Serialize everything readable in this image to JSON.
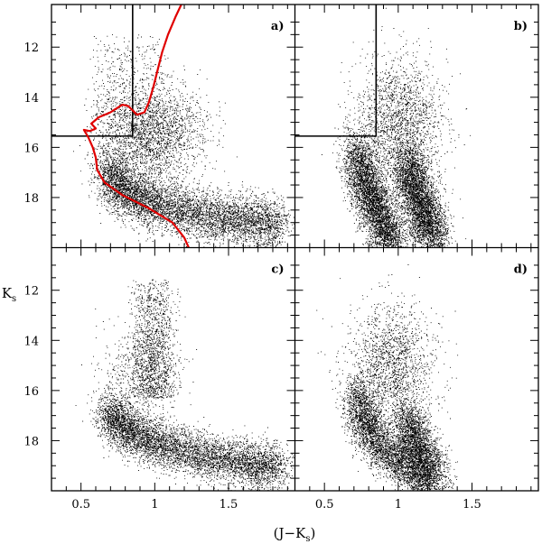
{
  "chart_data": {
    "type": "scatter",
    "layout": "2x2 panels sharing axes",
    "xlabel": "(J−K",
    "xlabel_sub": "s",
    "xlabel_close": ")",
    "ylabel": "K",
    "ylabel_sub": "s",
    "xlim": [
      0.3,
      1.95
    ],
    "ylim": [
      20.0,
      10.3
    ],
    "x_ticks": [
      {
        "value": 0.5,
        "label": "0.5"
      },
      {
        "value": 1.0,
        "label": "1"
      },
      {
        "value": 1.5,
        "label": "1.5"
      }
    ],
    "y_ticks": [
      {
        "value": 12,
        "label": "12"
      },
      {
        "value": 14,
        "label": "14"
      },
      {
        "value": 16,
        "label": "16"
      },
      {
        "value": 18,
        "label": "18"
      }
    ],
    "grid": false,
    "panels": [
      {
        "label": "a)",
        "points_drawn": 9000,
        "populations": [
          {
            "kind": "band",
            "weight": 0.68,
            "ridge": [
              [
                0.68,
                17.0
              ],
              [
                0.8,
                17.8
              ],
              [
                1.0,
                18.3
              ],
              [
                1.3,
                18.7
              ],
              [
                1.6,
                18.9
              ],
              [
                1.85,
                19.1
              ]
            ],
            "spread_x": 0.06,
            "spread_y": 0.5
          },
          {
            "kind": "cloud",
            "weight": 0.22,
            "center": [
              1.0,
              15.5
            ],
            "spread": [
              0.35,
              2.0
            ]
          },
          {
            "kind": "column",
            "weight": 0.1,
            "x_range": [
              0.6,
              1.05
            ],
            "y_range": [
              11.5,
              16.5
            ]
          }
        ],
        "selection_box": {
          "x_max": 0.85,
          "y_min": 15.55,
          "color": "#000000"
        },
        "isochrone": {
          "color": "#e00000",
          "points": [
            [
              1.23,
              20.0
            ],
            [
              1.2,
              19.6
            ],
            [
              1.12,
              19.0
            ],
            [
              0.95,
              18.4
            ],
            [
              0.78,
              17.9
            ],
            [
              0.66,
              17.4
            ],
            [
              0.61,
              16.9
            ],
            [
              0.6,
              16.4
            ],
            [
              0.58,
              16.0
            ],
            [
              0.55,
              15.6
            ],
            [
              0.52,
              15.3
            ],
            [
              0.56,
              15.35
            ],
            [
              0.6,
              15.25
            ],
            [
              0.57,
              15.05
            ],
            [
              0.62,
              14.8
            ],
            [
              0.7,
              14.6
            ],
            [
              0.78,
              14.3
            ],
            [
              0.82,
              14.35
            ],
            [
              0.88,
              14.7
            ],
            [
              0.93,
              14.6
            ],
            [
              0.96,
              14.2
            ],
            [
              0.99,
              13.6
            ],
            [
              1.02,
              12.9
            ],
            [
              1.05,
              12.2
            ],
            [
              1.09,
              11.5
            ],
            [
              1.14,
              10.8
            ],
            [
              1.18,
              10.3
            ]
          ]
        }
      },
      {
        "label": "b)",
        "points_drawn": 11000,
        "populations": [
          {
            "kind": "band",
            "weight": 0.42,
            "ridge": [
              [
                0.72,
                16.0
              ],
              [
                0.75,
                17.0
              ],
              [
                0.8,
                17.8
              ],
              [
                0.86,
                18.5
              ],
              [
                0.92,
                19.3
              ],
              [
                0.95,
                20.0
              ]
            ],
            "spread_x": 0.06,
            "spread_y": 0.5
          },
          {
            "kind": "band",
            "weight": 0.4,
            "ridge": [
              [
                1.05,
                16.5
              ],
              [
                1.1,
                17.5
              ],
              [
                1.15,
                18.3
              ],
              [
                1.2,
                19.0
              ],
              [
                1.25,
                19.8
              ]
            ],
            "spread_x": 0.06,
            "spread_y": 0.6
          },
          {
            "kind": "cloud",
            "weight": 0.18,
            "center": [
              1.0,
              15.0
            ],
            "spread": [
              0.3,
              2.6
            ]
          }
        ],
        "selection_box": {
          "x_max": 0.85,
          "y_min": 15.55,
          "color": "#000000"
        }
      },
      {
        "label": "c)",
        "points_drawn": 8000,
        "populations": [
          {
            "kind": "band",
            "weight": 0.75,
            "ridge": [
              [
                0.68,
                16.8
              ],
              [
                0.8,
                17.6
              ],
              [
                1.0,
                18.1
              ],
              [
                1.3,
                18.6
              ],
              [
                1.6,
                18.9
              ],
              [
                1.85,
                19.0
              ]
            ],
            "spread_x": 0.06,
            "spread_y": 0.45
          },
          {
            "kind": "column",
            "weight": 0.18,
            "x_range": [
              0.88,
              1.1
            ],
            "y_range": [
              11.5,
              16.3
            ]
          },
          {
            "kind": "cloud",
            "weight": 0.07,
            "center": [
              0.9,
              15.5
            ],
            "spread": [
              0.3,
              2.0
            ]
          }
        ]
      },
      {
        "label": "d)",
        "points_drawn": 8500,
        "populations": [
          {
            "kind": "band",
            "weight": 0.45,
            "ridge": [
              [
                0.72,
                16.0
              ],
              [
                0.76,
                17.0
              ],
              [
                0.82,
                17.8
              ],
              [
                0.92,
                18.5
              ],
              [
                1.05,
                19.0
              ],
              [
                1.2,
                19.8
              ]
            ],
            "spread_x": 0.06,
            "spread_y": 0.45
          },
          {
            "kind": "band",
            "weight": 0.35,
            "ridge": [
              [
                1.05,
                17.0
              ],
              [
                1.1,
                18.0
              ],
              [
                1.18,
                18.8
              ],
              [
                1.25,
                19.6
              ]
            ],
            "spread_x": 0.06,
            "spread_y": 0.55
          },
          {
            "kind": "cloud",
            "weight": 0.2,
            "center": [
              0.95,
              15.0
            ],
            "spread": [
              0.3,
              2.4
            ]
          }
        ]
      }
    ]
  }
}
